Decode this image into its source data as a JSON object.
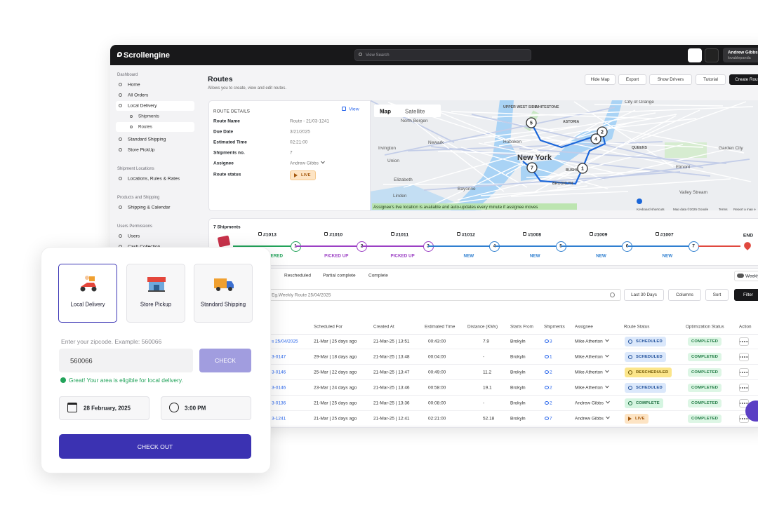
{
  "header": {
    "brand": "Scrollengine",
    "search_placeholder": "View Search",
    "user_name": "Andrew Gibbs",
    "user_handle": "lovablepanda"
  },
  "sidebar": [
    {
      "title": "Dashboard",
      "items": [
        {
          "label": "Home"
        },
        {
          "label": "All Orders"
        },
        {
          "label": "Local Delivery",
          "children": [
            "Shipments",
            "Routes"
          ]
        },
        {
          "label": "Standard Shipping"
        },
        {
          "label": "Store PickUp"
        }
      ]
    },
    {
      "title": "Shipment Locations",
      "items": [
        {
          "label": "Locations, Rules & Rates"
        }
      ]
    },
    {
      "title": "Products and Shipping",
      "items": [
        {
          "label": "Shipping & Calendar"
        }
      ]
    },
    {
      "title": "Users Permissions",
      "items": [
        {
          "label": "Users"
        },
        {
          "label": "Cash Collection"
        }
      ]
    }
  ],
  "page": {
    "title": "Routes",
    "subtitle": "Allows you to create, view and edit routes.",
    "actions": [
      "Hide Map",
      "Export",
      "Show Drivers",
      "Tutorial",
      "Create Route"
    ]
  },
  "route_details": {
    "heading": "ROUTE DETAILS",
    "link": "View",
    "fields": [
      {
        "label": "Route Name",
        "value": "Route - 21/03-1241"
      },
      {
        "label": "Due Date",
        "value": "3/21/2025"
      },
      {
        "label": "Estimated Time",
        "value": "02:21:00"
      },
      {
        "label": "Shipments no.",
        "value": "7"
      },
      {
        "label": "Assignee",
        "value": "Andrew Gibbs"
      },
      {
        "label": "Route status",
        "value": "LIVE"
      }
    ]
  },
  "map": {
    "tabs": [
      "Map",
      "Satellite"
    ],
    "places": [
      "North Bergen",
      "UPPER WEST SIDE",
      "WHITESTONE",
      "City of Orange",
      "ASTORIA",
      "Newark",
      "Hoboken",
      "Irvington",
      "New York",
      "QUEENS",
      "Union",
      "BUSHWICK",
      "Elmont",
      "Elizabeth",
      "BROOKLYN",
      "Bayonne",
      "Garden City",
      "Valley Stream",
      "Linden"
    ],
    "markers": [
      "5",
      "2",
      "4",
      "7",
      "1"
    ],
    "notice": "Assignee's live location is available and auto-updates every minute if assignee moves",
    "footer": [
      "Keyboard shortcuts",
      "Map data ©2025 Google",
      "Terms",
      "Report a map e"
    ]
  },
  "timeline": {
    "count": "7 Shipments",
    "end": "END",
    "stops": [
      {
        "id": "#1013",
        "number": "1",
        "status": "DELIVERED",
        "color": "#22a35a"
      },
      {
        "id": "#1010",
        "number": "2",
        "status": "PICKED UP",
        "color": "#9b3fc4"
      },
      {
        "id": "#1011",
        "number": "3",
        "status": "PICKED UP",
        "color": "#9b3fc4"
      },
      {
        "id": "#1012",
        "number": "4",
        "status": "NEW",
        "color": "#2f7fd0"
      },
      {
        "id": "#1008",
        "number": "5",
        "status": "NEW",
        "color": "#2f7fd0"
      },
      {
        "id": "#1009",
        "number": "6",
        "status": "NEW",
        "color": "#2f7fd0"
      },
      {
        "id": "#1007",
        "number": "7",
        "status": "NEW",
        "color": "#2f7fd0"
      }
    ],
    "end_color": "#e0483e"
  },
  "tabs": [
    "Rescheduled",
    "Partial complete",
    "Complete"
  ],
  "toggle": "Weekly",
  "filters": {
    "search_placeholder": "Eg.Weekly Route 25/04/2025",
    "buttons": [
      "Last 30 Days",
      "Columns",
      "Sort",
      "Filter"
    ]
  },
  "table": {
    "columns": [
      "Scheduled For",
      "Created At",
      "Estimated Time",
      "Distance (KMs)",
      "Starts From",
      "Shipments",
      "Assignee",
      "Route Status",
      "Optimization Status",
      "Action"
    ],
    "rows": [
      [
        "s 25/04/2025",
        "21-Mar | 25 days ago",
        "21-Mar-25 | 13:51",
        "00:43:00",
        "7.9",
        "Brokyln",
        "3",
        "Mike Atherton",
        "SCHEDULED",
        "COMPLETED"
      ],
      [
        "3-0147",
        "29-Mar | 18 days ago",
        "21-Mar-25 | 13:48",
        "00:04:00",
        "-",
        "Brokyln",
        "1",
        "Mike Atherton",
        "SCHEDULED",
        "COMPLETED"
      ],
      [
        "3-0146",
        "25-Mar | 22 days ago",
        "21-Mar-25 | 13:47",
        "00:49:00",
        "11.2",
        "Brokyln",
        "2",
        "Mike Atherton",
        "RESCHEDULED",
        "COMPLETED"
      ],
      [
        "3-0146",
        "23-Mar | 24 days ago",
        "21-Mar-25 | 13:46",
        "00:58:00",
        "19.1",
        "Brokyln",
        "2",
        "Mike Atherton",
        "SCHEDULED",
        "COMPLETED"
      ],
      [
        "3-0136",
        "21-Mar | 25 days ago",
        "21-Mar-25 | 13:36",
        "00:08:00",
        "-",
        "Brokyln",
        "2",
        "Andrew Gibbs",
        "COMPLETE",
        "COMPLETED"
      ],
      [
        "3-1241",
        "21-Mar | 25 days ago",
        "21-Mar-25 | 12:41",
        "02:21:00",
        "52.18",
        "Brokyln",
        "7",
        "Andrew Gibbs",
        "LIVE",
        "COMPLETED"
      ]
    ],
    "badge_colors": {
      "SCHEDULED": [
        "#dbe8fb",
        "#1f4f9a"
      ],
      "RESCHEDULED": [
        "#fbe58a",
        "#6b5200"
      ],
      "COMPLETE": [
        "#d5f5e1",
        "#17693a"
      ],
      "LIVE": [
        "#fde4c4",
        "#a4570c"
      ],
      "COMPLETED": [
        "#ddf6e5",
        "#1f7a43"
      ]
    }
  },
  "delivery_card": {
    "options": [
      "Local Delivery",
      "Store Pickup",
      "Standard Shipping"
    ],
    "zip_label": "Enter your zipcode. Example: 560066",
    "zip_value": "560066",
    "check": "CHECK",
    "success": "Great! Your area is eligible for local delivery.",
    "date": "28 February, 2025",
    "time": "3:00 PM",
    "checkout": "CHECK OUT"
  }
}
